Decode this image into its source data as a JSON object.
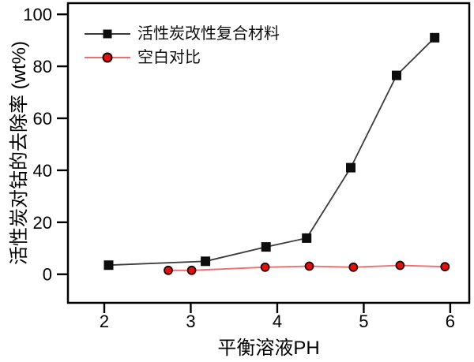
{
  "chart_data": {
    "type": "line",
    "title": "",
    "xlabel": "平衡溶液PH",
    "ylabel": "活性炭对钴的去除率 (wt%)",
    "xlim": [
      1.58,
      6.22
    ],
    "ylim": [
      -11,
      104.3
    ],
    "xticks": [
      2,
      3,
      4,
      5,
      6
    ],
    "yticks": [
      0,
      20,
      40,
      60,
      80,
      100
    ],
    "grid": false,
    "legend_position": "upper-left-inside",
    "frame_color": "#000000",
    "background": "#ffffff",
    "series": [
      {
        "name": "活性炭改性复合材料",
        "marker": "square",
        "line_color": "#3a3a3a",
        "marker_fill": "#0d0d0d",
        "marker_edge": "#0d0d0d",
        "x": [
          2.05,
          3.17,
          3.87,
          4.34,
          4.85,
          5.38,
          5.82
        ],
        "y": [
          3.5,
          5.0,
          10.5,
          13.9,
          41.0,
          76.5,
          91.0
        ]
      },
      {
        "name": "空白对比",
        "marker": "circle",
        "line_color": "#f46a6a",
        "marker_fill": "#dd1111",
        "marker_edge": "#2a0000",
        "x": [
          2.74,
          3.01,
          3.86,
          4.37,
          4.88,
          5.42,
          5.94
        ],
        "y": [
          1.5,
          1.5,
          2.7,
          3.1,
          2.7,
          3.4,
          2.9
        ]
      }
    ]
  }
}
